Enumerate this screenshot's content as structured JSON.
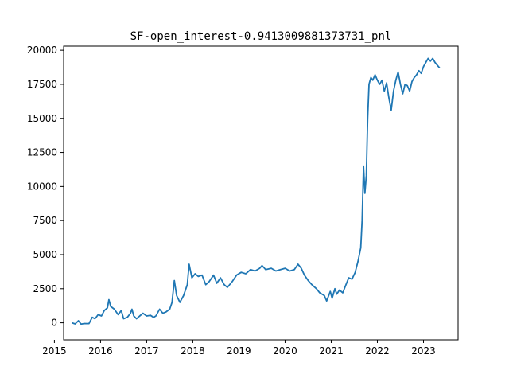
{
  "chart_data": {
    "type": "line",
    "title": "SF-open_interest-0.9413009881373731_pnl",
    "xlabel": "",
    "ylabel": "",
    "xlim": [
      2015.2,
      2023.75
    ],
    "ylim": [
      -1250,
      20300
    ],
    "x_ticks": [
      "2015",
      "2016",
      "2017",
      "2018",
      "2019",
      "2020",
      "2021",
      "2022",
      "2023"
    ],
    "x_tick_values": [
      2015,
      2016,
      2017,
      2018,
      2019,
      2020,
      2021,
      2022,
      2023
    ],
    "y_ticks": [
      "0",
      "2500",
      "5000",
      "7500",
      "10000",
      "12500",
      "15000",
      "17500",
      "20000"
    ],
    "y_tick_values": [
      0,
      2500,
      5000,
      7500,
      10000,
      12500,
      15000,
      17500,
      20000
    ],
    "grid": false,
    "series": [
      {
        "color": "#1f77b4",
        "points": [
          [
            2015.38,
            0
          ],
          [
            2015.45,
            -80
          ],
          [
            2015.52,
            150
          ],
          [
            2015.58,
            -100
          ],
          [
            2015.65,
            -50
          ],
          [
            2015.75,
            -60
          ],
          [
            2015.82,
            400
          ],
          [
            2015.88,
            300
          ],
          [
            2015.95,
            600
          ],
          [
            2016.02,
            500
          ],
          [
            2016.08,
            900
          ],
          [
            2016.15,
            1100
          ],
          [
            2016.18,
            1700
          ],
          [
            2016.22,
            1200
          ],
          [
            2016.3,
            1000
          ],
          [
            2016.38,
            600
          ],
          [
            2016.45,
            900
          ],
          [
            2016.5,
            300
          ],
          [
            2016.58,
            400
          ],
          [
            2016.65,
            700
          ],
          [
            2016.68,
            1000
          ],
          [
            2016.72,
            500
          ],
          [
            2016.78,
            300
          ],
          [
            2016.85,
            500
          ],
          [
            2016.92,
            700
          ],
          [
            2017.0,
            500
          ],
          [
            2017.08,
            550
          ],
          [
            2017.15,
            400
          ],
          [
            2017.2,
            500
          ],
          [
            2017.28,
            1000
          ],
          [
            2017.35,
            700
          ],
          [
            2017.42,
            800
          ],
          [
            2017.5,
            1000
          ],
          [
            2017.55,
            1500
          ],
          [
            2017.6,
            3100
          ],
          [
            2017.65,
            2000
          ],
          [
            2017.72,
            1500
          ],
          [
            2017.8,
            2000
          ],
          [
            2017.88,
            2800
          ],
          [
            2017.92,
            4300
          ],
          [
            2017.98,
            3300
          ],
          [
            2018.05,
            3600
          ],
          [
            2018.12,
            3400
          ],
          [
            2018.2,
            3500
          ],
          [
            2018.28,
            2800
          ],
          [
            2018.35,
            3000
          ],
          [
            2018.45,
            3500
          ],
          [
            2018.52,
            2900
          ],
          [
            2018.6,
            3300
          ],
          [
            2018.68,
            2800
          ],
          [
            2018.75,
            2600
          ],
          [
            2018.85,
            3000
          ],
          [
            2018.95,
            3500
          ],
          [
            2019.05,
            3700
          ],
          [
            2019.15,
            3600
          ],
          [
            2019.25,
            3900
          ],
          [
            2019.35,
            3800
          ],
          [
            2019.45,
            4000
          ],
          [
            2019.5,
            4200
          ],
          [
            2019.58,
            3900
          ],
          [
            2019.7,
            4000
          ],
          [
            2019.8,
            3800
          ],
          [
            2019.9,
            3900
          ],
          [
            2020.0,
            4000
          ],
          [
            2020.1,
            3800
          ],
          [
            2020.2,
            3900
          ],
          [
            2020.28,
            4300
          ],
          [
            2020.35,
            4000
          ],
          [
            2020.42,
            3500
          ],
          [
            2020.5,
            3100
          ],
          [
            2020.58,
            2800
          ],
          [
            2020.68,
            2500
          ],
          [
            2020.75,
            2200
          ],
          [
            2020.85,
            2000
          ],
          [
            2020.9,
            1600
          ],
          [
            2020.98,
            2300
          ],
          [
            2021.02,
            1800
          ],
          [
            2021.08,
            2500
          ],
          [
            2021.12,
            2100
          ],
          [
            2021.18,
            2400
          ],
          [
            2021.25,
            2200
          ],
          [
            2021.32,
            2800
          ],
          [
            2021.38,
            3300
          ],
          [
            2021.45,
            3200
          ],
          [
            2021.52,
            3700
          ],
          [
            2021.58,
            4500
          ],
          [
            2021.64,
            5500
          ],
          [
            2021.67,
            7500
          ],
          [
            2021.7,
            11500
          ],
          [
            2021.73,
            9500
          ],
          [
            2021.76,
            10800
          ],
          [
            2021.79,
            15000
          ],
          [
            2021.82,
            17500
          ],
          [
            2021.86,
            18000
          ],
          [
            2021.9,
            17800
          ],
          [
            2021.95,
            18200
          ],
          [
            2022.0,
            17800
          ],
          [
            2022.05,
            17500
          ],
          [
            2022.1,
            17800
          ],
          [
            2022.15,
            17000
          ],
          [
            2022.2,
            17600
          ],
          [
            2022.25,
            16500
          ],
          [
            2022.3,
            15600
          ],
          [
            2022.35,
            17000
          ],
          [
            2022.4,
            17800
          ],
          [
            2022.45,
            18400
          ],
          [
            2022.5,
            17500
          ],
          [
            2022.55,
            16800
          ],
          [
            2022.6,
            17500
          ],
          [
            2022.65,
            17400
          ],
          [
            2022.7,
            17000
          ],
          [
            2022.75,
            17700
          ],
          [
            2022.8,
            18000
          ],
          [
            2022.85,
            18200
          ],
          [
            2022.9,
            18500
          ],
          [
            2022.95,
            18300
          ],
          [
            2023.0,
            18800
          ],
          [
            2023.05,
            19100
          ],
          [
            2023.1,
            19400
          ],
          [
            2023.15,
            19200
          ],
          [
            2023.2,
            19400
          ],
          [
            2023.25,
            19100
          ],
          [
            2023.3,
            18900
          ],
          [
            2023.35,
            18700
          ]
        ]
      }
    ]
  }
}
